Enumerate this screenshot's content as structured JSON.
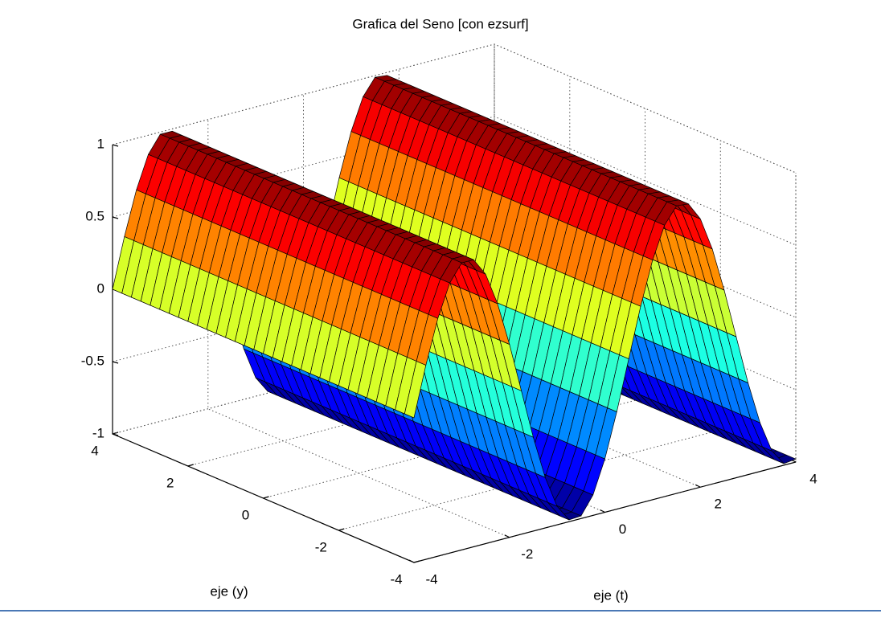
{
  "chart_data": {
    "type": "surface",
    "title": "Grafica del Seno [con ezsurf]",
    "xlabel": "eje (t)",
    "ylabel": "eje (y)",
    "x": [
      -4,
      -3.75,
      -3.5,
      -3.25,
      -3,
      -2.75,
      -2.5,
      -2.25,
      -2,
      -1.75,
      -1.5,
      -1.25,
      -1,
      -0.75,
      -0.5,
      -0.25,
      0,
      0.25,
      0.5,
      0.75,
      1,
      1.25,
      1.5,
      1.75,
      2,
      2.25,
      2.5,
      2.75,
      3,
      3.25,
      3.5,
      3.75,
      4
    ],
    "y": [
      -4,
      -3.75,
      -3.5,
      -3.25,
      -3,
      -2.75,
      -2.5,
      -2.25,
      -2,
      -1.75,
      -1.5,
      -1.25,
      -1,
      -0.75,
      -0.5,
      -0.25,
      0,
      0.25,
      0.5,
      0.75,
      1,
      1.25,
      1.5,
      1.75,
      2,
      2.25,
      2.5,
      2.75,
      3,
      3.25,
      3.5,
      3.75,
      4
    ],
    "z": [
      0,
      0.343,
      0.644,
      0.867,
      0.985,
      0.984,
      0.863,
      0.638,
      0.335,
      -0.008,
      -0.351,
      -0.651,
      -0.872,
      -0.987,
      -0.982,
      -0.859,
      -0.631,
      -0.327,
      0.017,
      0.359,
      0.657,
      0.876,
      0.988,
      0.98,
      0.855,
      0.625,
      0.319,
      -0.025,
      -0.366,
      -0.663,
      -0.88,
      -0.989,
      -0.979
    ],
    "xlim": [
      -4,
      4
    ],
    "ylim": [
      -4,
      4
    ],
    "zlim": [
      -1,
      1
    ],
    "xticks": [
      -4,
      -2,
      0,
      2,
      4
    ],
    "yticks": [
      -4,
      -2,
      0,
      2,
      4
    ],
    "zticks": [
      -1,
      -0.5,
      0,
      0.5,
      1
    ],
    "colormap": "jet",
    "edge_color": "#000000",
    "grid": true
  }
}
